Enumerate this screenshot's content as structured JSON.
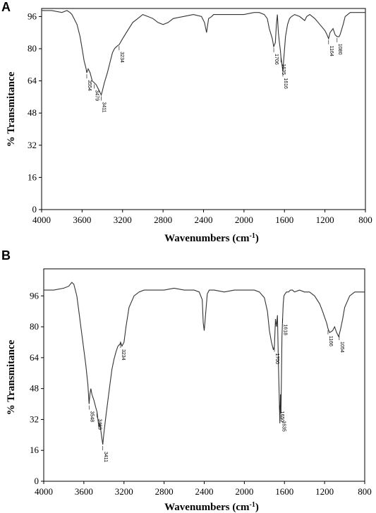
{
  "chart_data": [
    {
      "panel_label": "A",
      "type": "line",
      "xlabel": "Wavenumbers (cm-1)",
      "ylabel": "% Transmitance",
      "xlim": [
        4000,
        800
      ],
      "ylim": [
        0,
        100
      ],
      "xticks": [
        4000,
        3600,
        3200,
        2800,
        2400,
        2000,
        1600,
        1200,
        800
      ],
      "yticks": [
        0,
        16,
        32,
        48,
        64,
        80,
        96
      ],
      "grid": false,
      "series": [
        {
          "x": [
            4000,
            3900,
            3800,
            3750,
            3720,
            3700,
            3680,
            3650,
            3620,
            3600,
            3580,
            3560,
            3554,
            3540,
            3520,
            3500,
            3479,
            3460,
            3440,
            3420,
            3411,
            3400,
            3380,
            3350,
            3320,
            3300,
            3280,
            3260,
            3234,
            3200,
            3150,
            3100,
            3050,
            3000,
            2950,
            2900,
            2850,
            2800,
            2750,
            2700,
            2600,
            2500,
            2420,
            2390,
            2370,
            2350,
            2320,
            2300,
            2200,
            2100,
            2000,
            1900,
            1850,
            1800,
            1770,
            1750,
            1720,
            1706,
            1690,
            1680,
            1670,
            1660,
            1650,
            1640,
            1635,
            1625,
            1616,
            1605,
            1590,
            1570,
            1550,
            1530,
            1500,
            1450,
            1400,
            1380,
            1350,
            1300,
            1250,
            1200,
            1180,
            1164,
            1150,
            1120,
            1100,
            1080,
            1060,
            1050,
            1020,
            1000,
            950,
            900,
            850,
            800
          ],
          "y": [
            99,
            99,
            98,
            99,
            98,
            97,
            95,
            92,
            86,
            80,
            74,
            70,
            68,
            70,
            68,
            64,
            63,
            62,
            60,
            58,
            57,
            59,
            63,
            68,
            74,
            78,
            80,
            81,
            82,
            85,
            89,
            93,
            95,
            97,
            96,
            95,
            93,
            92,
            93,
            95,
            96,
            97,
            96,
            93,
            88,
            95,
            96,
            97,
            97,
            97,
            97,
            98,
            98,
            97,
            95,
            90,
            85,
            81,
            83,
            92,
            97,
            88,
            83,
            79,
            76,
            72,
            69,
            76,
            86,
            92,
            95,
            96,
            97,
            96,
            94,
            96,
            97,
            95,
            92,
            89,
            87,
            85,
            88,
            90,
            87,
            86,
            86,
            87,
            92,
            96,
            98,
            98,
            98,
            98
          ]
        }
      ],
      "annotations": [
        {
          "x": 3554,
          "label": "3554"
        },
        {
          "x": 3479,
          "label": "3479"
        },
        {
          "x": 3411,
          "label": "3411"
        },
        {
          "x": 3234,
          "label": "3234"
        },
        {
          "x": 1706,
          "label": "1706"
        },
        {
          "x": 1635,
          "label": "1635"
        },
        {
          "x": 1616,
          "label": "1616"
        },
        {
          "x": 1164,
          "label": "1164"
        },
        {
          "x": 1080,
          "label": "1080"
        }
      ]
    },
    {
      "panel_label": "B",
      "type": "line",
      "xlabel": "Wavenumbers (cm-1)",
      "ylabel": "% Transmitance",
      "xlim": [
        4000,
        800
      ],
      "ylim": [
        0,
        110
      ],
      "xticks": [
        4000,
        3600,
        3200,
        2800,
        2400,
        2000,
        1600,
        1200,
        800
      ],
      "yticks": [
        0,
        16,
        32,
        48,
        64,
        80,
        96
      ],
      "grid": false,
      "series": [
        {
          "x": [
            4000,
            3900,
            3800,
            3750,
            3720,
            3700,
            3690,
            3670,
            3650,
            3630,
            3600,
            3580,
            3560,
            3548,
            3540,
            3530,
            3520,
            3500,
            3480,
            3469,
            3460,
            3450,
            3440,
            3420,
            3411,
            3400,
            3380,
            3360,
            3340,
            3320,
            3300,
            3280,
            3260,
            3240,
            3234,
            3220,
            3200,
            3180,
            3150,
            3100,
            3050,
            3000,
            2900,
            2800,
            2700,
            2600,
            2500,
            2450,
            2420,
            2410,
            2400,
            2390,
            2370,
            2350,
            2300,
            2200,
            2100,
            2000,
            1900,
            1850,
            1800,
            1770,
            1750,
            1730,
            1710,
            1700,
            1690,
            1680,
            1670,
            1660,
            1650,
            1646,
            1640,
            1635,
            1630,
            1625,
            1618,
            1612,
            1605,
            1595,
            1580,
            1560,
            1540,
            1520,
            1500,
            1450,
            1400,
            1350,
            1300,
            1250,
            1220,
            1200,
            1180,
            1166,
            1150,
            1120,
            1100,
            1080,
            1060,
            1054,
            1040,
            1020,
            1000,
            950,
            900,
            850,
            800
          ],
          "y": [
            99,
            99,
            100,
            101,
            103,
            102,
            100,
            96,
            88,
            80,
            68,
            60,
            50,
            40,
            45,
            48,
            45,
            42,
            38,
            36,
            32,
            28,
            30,
            22,
            19,
            25,
            34,
            42,
            50,
            58,
            63,
            67,
            70,
            71,
            72,
            70,
            72,
            80,
            90,
            96,
            98,
            99,
            99,
            99,
            100,
            99,
            99,
            98,
            94,
            82,
            78,
            84,
            97,
            99,
            99,
            98,
            99,
            99,
            99,
            98,
            95,
            88,
            78,
            72,
            68,
            70,
            84,
            80,
            86,
            60,
            40,
            30,
            45,
            35,
            55,
            75,
            85,
            92,
            96,
            97,
            98,
            98,
            99,
            99,
            98,
            99,
            98,
            98,
            96,
            92,
            88,
            85,
            82,
            79,
            77,
            78,
            80,
            77,
            75,
            76,
            79,
            84,
            90,
            96,
            98,
            98,
            98
          ]
        }
      ],
      "annotations": [
        {
          "x": 3548,
          "label": "3548"
        },
        {
          "x": 3469,
          "label": "3469"
        },
        {
          "x": 3411,
          "label": "3411"
        },
        {
          "x": 3234,
          "label": "3234"
        },
        {
          "x": 1700,
          "label": "1700"
        },
        {
          "x": 1650,
          "label": "1650"
        },
        {
          "x": 1635,
          "label": "1635"
        },
        {
          "x": 1618,
          "label": "1618"
        },
        {
          "x": 1166,
          "label": "1166"
        },
        {
          "x": 1054,
          "label": "1054"
        }
      ]
    }
  ]
}
